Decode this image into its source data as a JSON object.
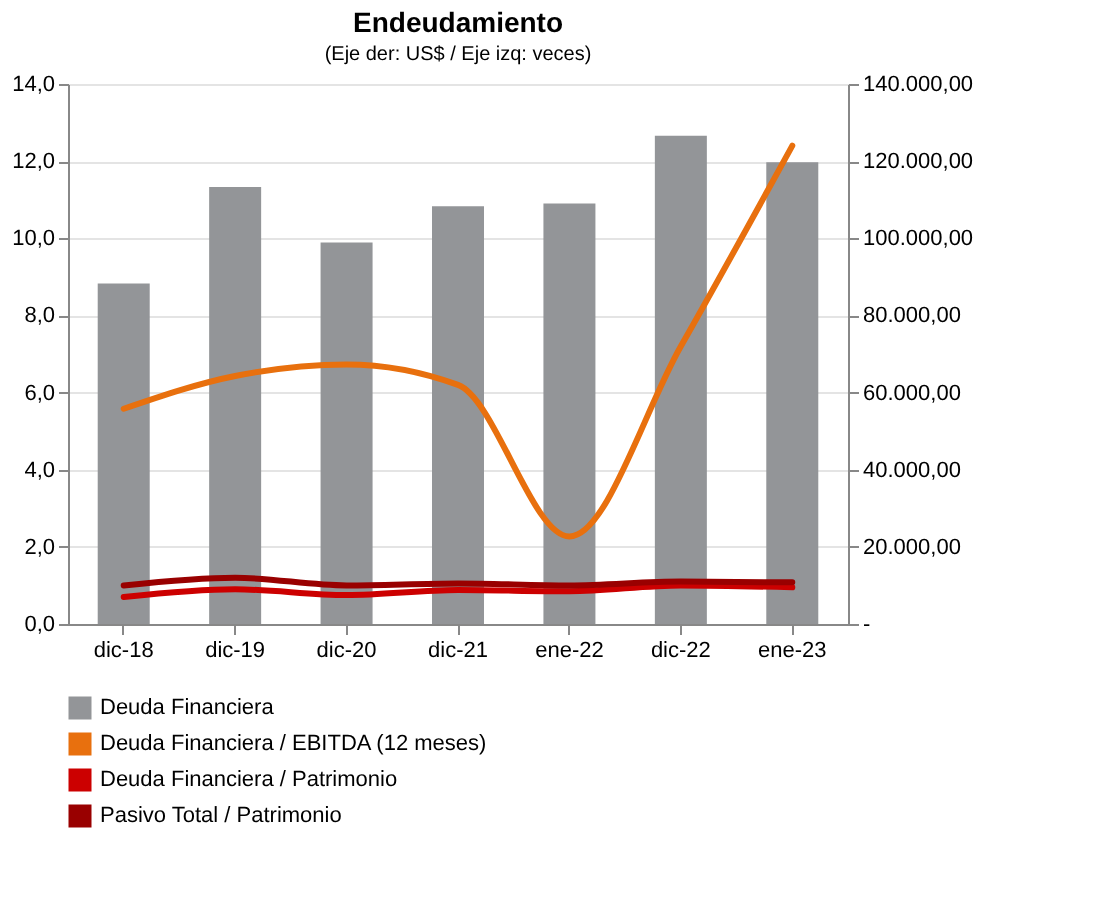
{
  "chart_data": {
    "type": "bar",
    "title": "Endeudamiento",
    "subtitle": "(Eje der: US$ / Eje izq: veces)",
    "categories": [
      "dic-18",
      "dic-19",
      "dic-20",
      "dic-21",
      "ene-22",
      "dic-22",
      "ene-23"
    ],
    "series": [
      {
        "name": "Deuda Financiera",
        "axis": "y2",
        "color": "#939598",
        "values": [
          88300,
          113300,
          98900,
          108300,
          109000,
          126600,
          119700
        ]
      },
      {
        "name": "Deuda Financiera / EBITDA (12 meses)",
        "type": "line",
        "color": "#e8700e",
        "values": [
          5.58,
          6.43,
          6.73,
          6.2,
          2.27,
          7.2,
          12.4
        ]
      },
      {
        "name": "Deuda Financiera / Patrimonio",
        "type": "line",
        "color": "#cc0000",
        "values": [
          0.7,
          0.9,
          0.75,
          0.88,
          0.85,
          1.0,
          0.95
        ]
      },
      {
        "name": "Pasivo Total / Patrimonio",
        "type": "line",
        "color": "#990000",
        "values": [
          1.0,
          1.2,
          1.0,
          1.05,
          1.0,
          1.1,
          1.08
        ]
      }
    ],
    "ylim": [
      0,
      14
    ],
    "yticks": [
      {
        "value": 0,
        "label": "0,0"
      },
      {
        "value": 2,
        "label": "2,0"
      },
      {
        "value": 4,
        "label": "4,0"
      },
      {
        "value": 6,
        "label": "6,0"
      },
      {
        "value": 8,
        "label": "8,0"
      },
      {
        "value": 10,
        "label": "10,0"
      },
      {
        "value": 12,
        "label": "12,0"
      },
      {
        "value": 14,
        "label": "14,0"
      }
    ],
    "y2lim": [
      0,
      140000
    ],
    "y2ticks": [
      {
        "value": 0,
        "label": "-"
      },
      {
        "value": 20000,
        "label": "20.000,00"
      },
      {
        "value": 40000,
        "label": "40.000,00"
      },
      {
        "value": 60000,
        "label": "60.000,00"
      },
      {
        "value": 80000,
        "label": "80.000,00"
      },
      {
        "value": 100000,
        "label": "100.000,00"
      },
      {
        "value": 120000,
        "label": "120.000,00"
      },
      {
        "value": 140000,
        "label": "140.000,00"
      }
    ],
    "grid": "y",
    "legend": "bottom",
    "line_style": "solid",
    "marker": "none"
  }
}
